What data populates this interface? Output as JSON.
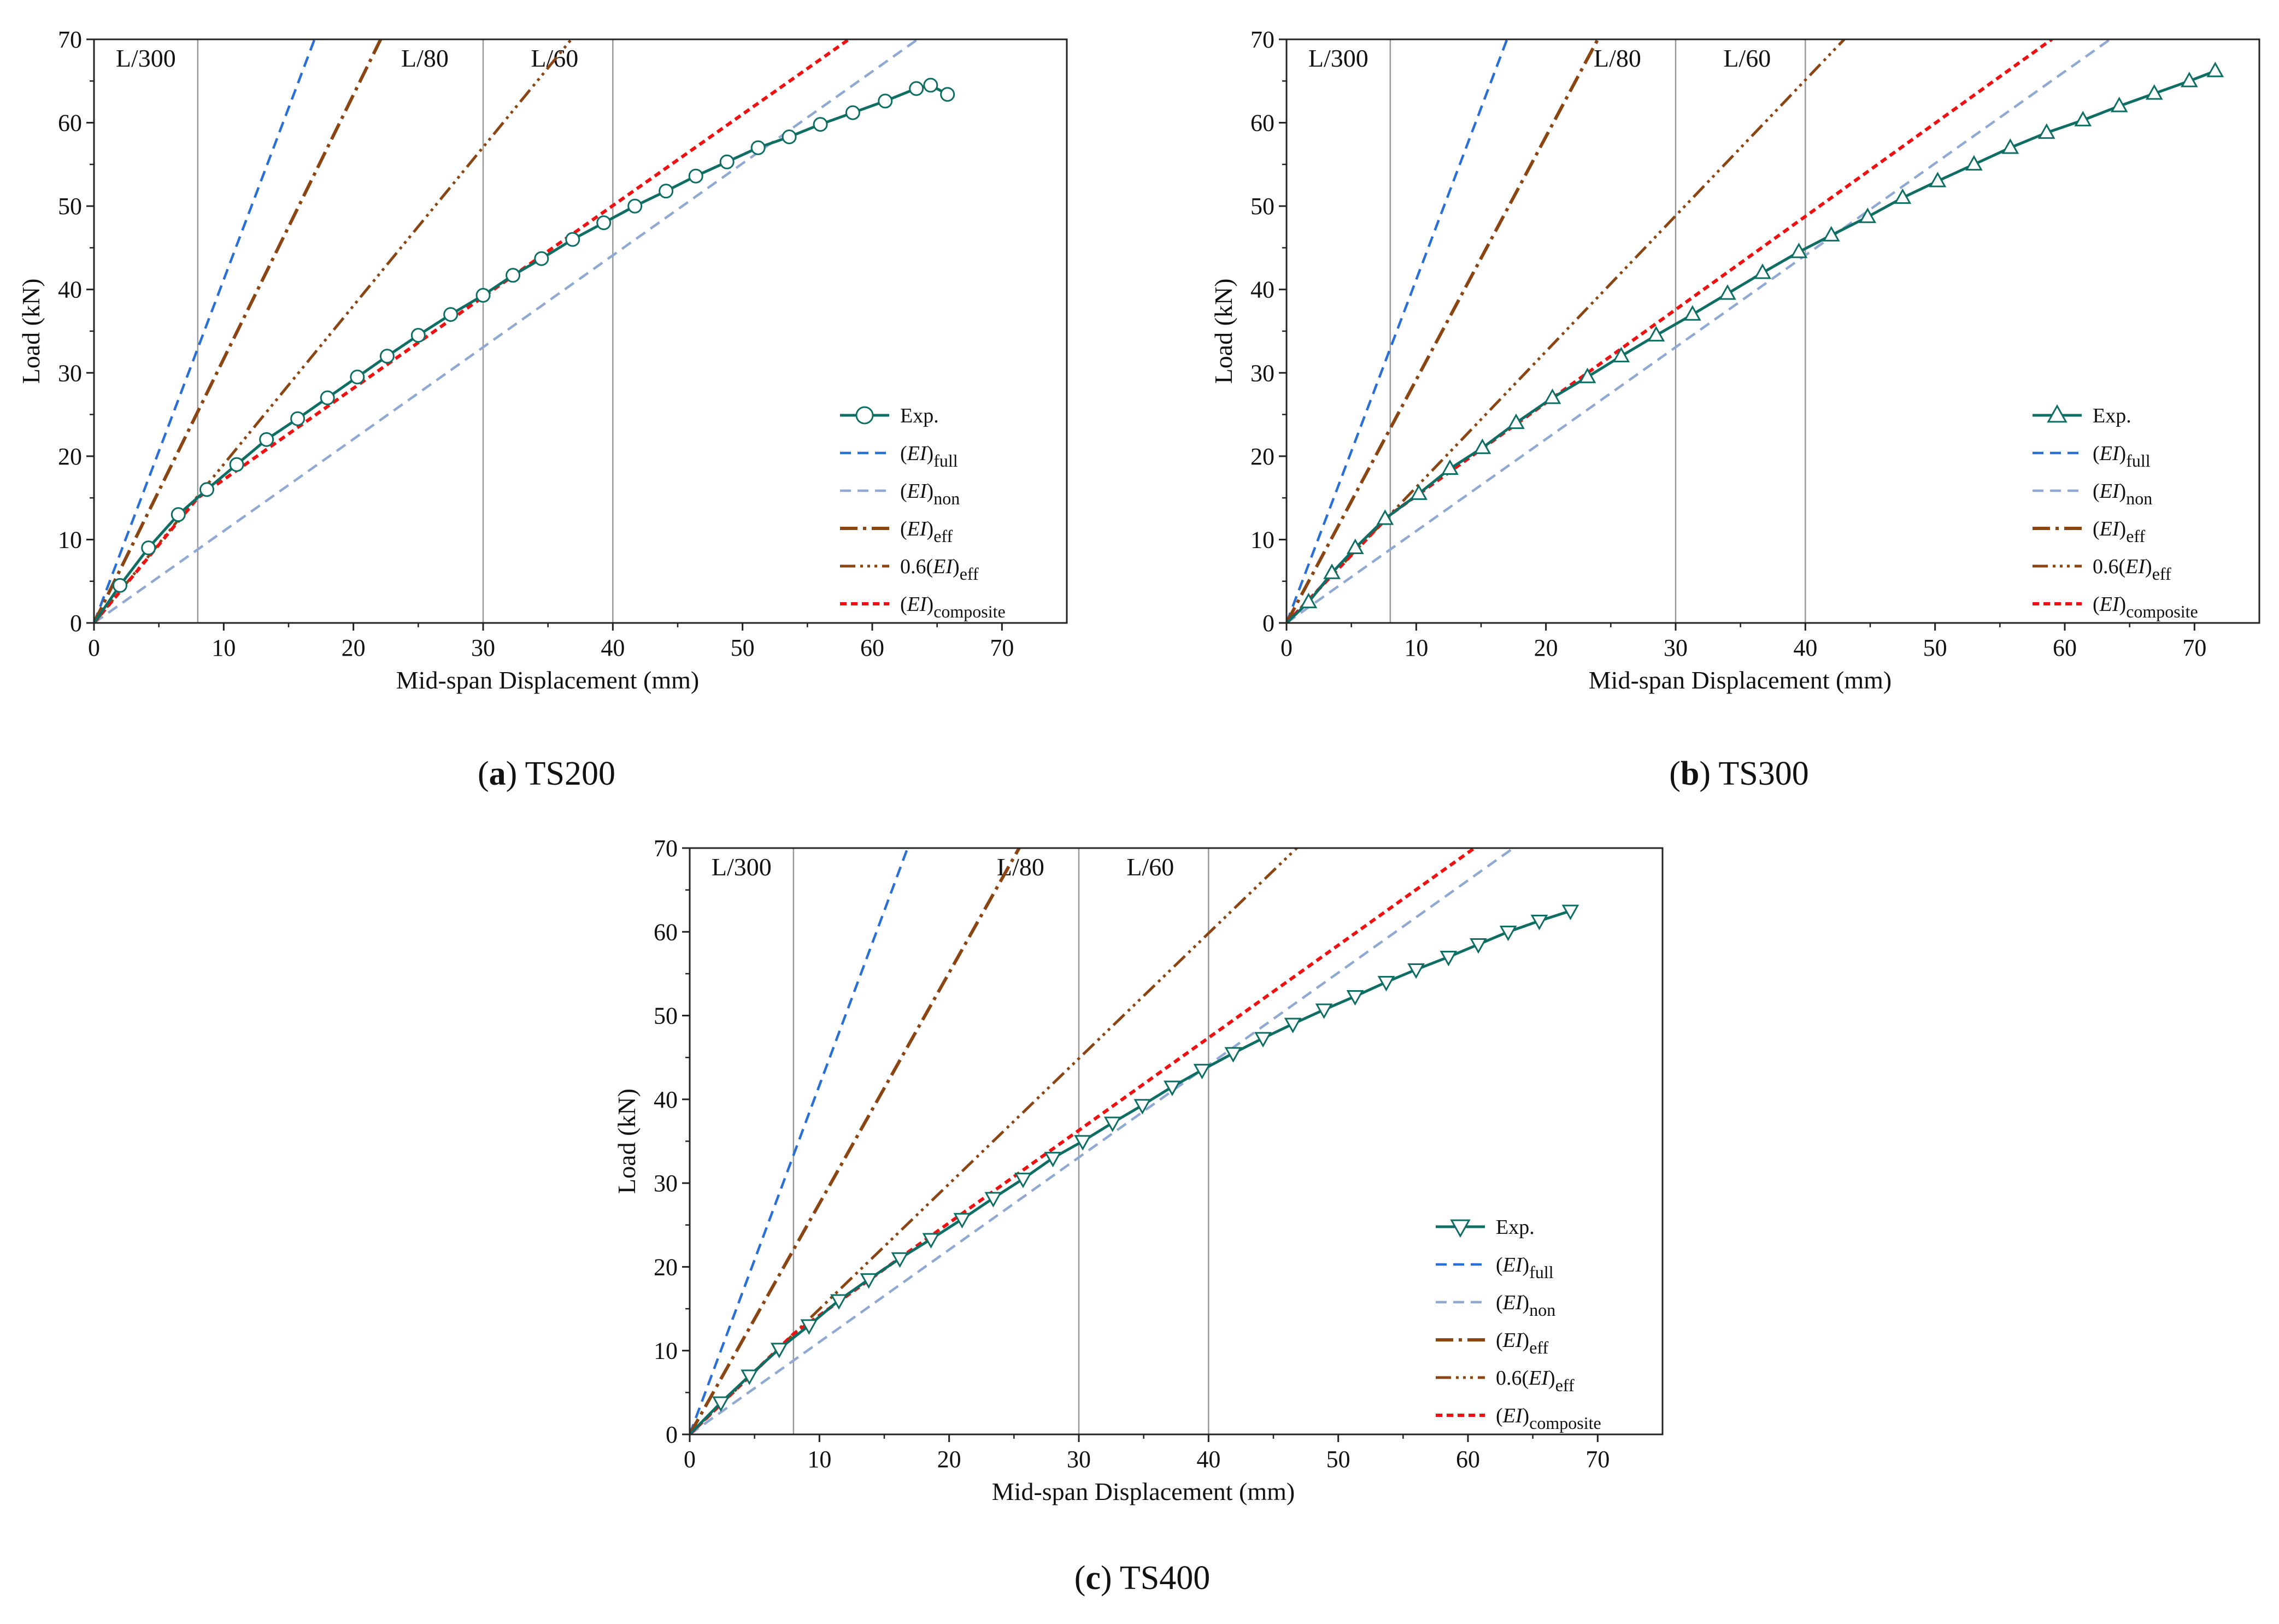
{
  "chart_data": [
    {
      "type": "line",
      "panel_letter": "a",
      "panel_caption": "TS200",
      "xlabel": "Mid-span Displacement (mm)",
      "ylabel": "Load (kN)",
      "xlim": [
        0,
        75
      ],
      "ylim": [
        0,
        70
      ],
      "xticks": [
        0,
        10,
        20,
        30,
        40,
        50,
        60,
        70
      ],
      "yticks": [
        0,
        10,
        20,
        30,
        40,
        50,
        60,
        70
      ],
      "reference_lines": [
        {
          "x": 8,
          "label": "L/300"
        },
        {
          "x": 30,
          "label": "L/80"
        },
        {
          "x": 40,
          "label": "L/60"
        }
      ],
      "series": [
        {
          "name": "Exp.",
          "marker": "circle",
          "x": [
            0,
            2,
            4.2,
            6.5,
            8.7,
            11,
            13.3,
            15.7,
            18,
            20.3,
            22.6,
            25,
            27.5,
            30,
            32.3,
            34.5,
            36.9,
            39.3,
            41.7,
            44.1,
            46.4,
            48.8,
            51.2,
            53.6,
            56,
            58.5,
            61,
            63.4,
            64.5,
            65.8
          ],
          "y": [
            0,
            4.5,
            9,
            13,
            16,
            19,
            22,
            24.5,
            27,
            29.5,
            32,
            34.5,
            37,
            39.3,
            41.7,
            43.7,
            46,
            48,
            50,
            51.8,
            53.6,
            55.3,
            57,
            58.3,
            59.8,
            61.2,
            62.6,
            64.1,
            64.5,
            63.4
          ]
        },
        {
          "name": "(EI)",
          "subscript": "full",
          "x": [
            0,
            17
          ],
          "y": [
            0,
            70
          ]
        },
        {
          "name": "(EI)",
          "subscript": "non",
          "x": [
            0,
            63.5
          ],
          "y": [
            0,
            70
          ]
        },
        {
          "name": "(EI)",
          "subscript": "eff",
          "x": [
            0,
            22.1
          ],
          "y": [
            0,
            70
          ]
        },
        {
          "name": "0.6(EI)",
          "subscript": "eff",
          "x": [
            0,
            36.8
          ],
          "y": [
            0,
            70
          ]
        },
        {
          "name": "(EI)",
          "subscript": "composite",
          "x": [
            0,
            8,
            58.2
          ],
          "y": [
            0,
            15,
            70
          ]
        }
      ]
    },
    {
      "type": "line",
      "panel_letter": "b",
      "panel_caption": "TS300",
      "xlabel": "Mid-span Displacement (mm)",
      "ylabel": "Load (kN)",
      "xlim": [
        0,
        75
      ],
      "ylim": [
        0,
        70
      ],
      "xticks": [
        0,
        10,
        20,
        30,
        40,
        50,
        60,
        70
      ],
      "yticks": [
        0,
        10,
        20,
        30,
        40,
        50,
        60,
        70
      ],
      "reference_lines": [
        {
          "x": 8,
          "label": "L/300"
        },
        {
          "x": 30,
          "label": "L/80"
        },
        {
          "x": 40,
          "label": "L/60"
        }
      ],
      "series": [
        {
          "name": "Exp.",
          "marker": "triangle-up",
          "x": [
            0,
            1.7,
            3.5,
            5.3,
            7.6,
            10.2,
            12.6,
            15.1,
            17.7,
            20.5,
            23.2,
            25.8,
            28.5,
            31.3,
            34,
            36.7,
            39.5,
            42,
            44.8,
            47.5,
            50.2,
            53,
            55.8,
            58.6,
            61.4,
            64.2,
            66.9,
            69.6,
            71.6
          ],
          "y": [
            0,
            2.5,
            6,
            9,
            12.5,
            15.5,
            18.5,
            21,
            24,
            27,
            29.5,
            32,
            34.5,
            37,
            39.5,
            42,
            44.5,
            46.5,
            48.7,
            51,
            53,
            55,
            57,
            58.8,
            60.3,
            62,
            63.5,
            65,
            66.2
          ]
        },
        {
          "name": "(EI)",
          "subscript": "full",
          "x": [
            0,
            17
          ],
          "y": [
            0,
            70
          ]
        },
        {
          "name": "(EI)",
          "subscript": "non",
          "x": [
            0,
            63.5
          ],
          "y": [
            0,
            70
          ]
        },
        {
          "name": "(EI)",
          "subscript": "eff",
          "x": [
            0,
            24
          ],
          "y": [
            0,
            70
          ]
        },
        {
          "name": "0.6(EI)",
          "subscript": "eff",
          "x": [
            0,
            43
          ],
          "y": [
            0,
            70
          ]
        },
        {
          "name": "(EI)",
          "subscript": "composite",
          "x": [
            0,
            8,
            59
          ],
          "y": [
            0,
            13,
            70
          ]
        }
      ]
    },
    {
      "type": "line",
      "panel_letter": "c",
      "panel_caption": "TS400",
      "xlabel": "Mid-span Displacement (mm)",
      "ylabel": "Load (kN)",
      "xlim": [
        0,
        75
      ],
      "ylim": [
        0,
        70
      ],
      "xticks": [
        0,
        10,
        20,
        30,
        40,
        50,
        60,
        70
      ],
      "yticks": [
        0,
        10,
        20,
        30,
        40,
        50,
        60,
        70
      ],
      "reference_lines": [
        {
          "x": 8,
          "label": "L/300"
        },
        {
          "x": 30,
          "label": "L/80"
        },
        {
          "x": 40,
          "label": "L/60"
        }
      ],
      "series": [
        {
          "name": "Exp.",
          "marker": "triangle-down",
          "x": [
            0,
            2.4,
            4.6,
            6.9,
            9.2,
            11.5,
            13.8,
            16.2,
            18.6,
            21,
            23.4,
            25.7,
            28,
            30.3,
            32.6,
            34.9,
            37.2,
            39.5,
            41.9,
            44.2,
            46.5,
            48.9,
            51.3,
            53.7,
            56,
            58.5,
            60.8,
            63.1,
            65.5,
            67.9
          ],
          "y": [
            0,
            3.8,
            7,
            10.2,
            13,
            16,
            18.5,
            21,
            23.3,
            25.7,
            28.2,
            30.5,
            33,
            35,
            37.2,
            39.3,
            41.5,
            43.5,
            45.5,
            47.3,
            49,
            50.7,
            52.3,
            54,
            55.5,
            57,
            58.5,
            60,
            61.3,
            62.5
          ]
        },
        {
          "name": "(EI)",
          "subscript": "full",
          "x": [
            0,
            16.8
          ],
          "y": [
            0,
            70
          ]
        },
        {
          "name": "(EI)",
          "subscript": "non",
          "x": [
            0,
            63.5
          ],
          "y": [
            0,
            70
          ]
        },
        {
          "name": "(EI)",
          "subscript": "eff",
          "x": [
            0,
            25.4
          ],
          "y": [
            0,
            70
          ]
        },
        {
          "name": "0.6(EI)",
          "subscript": "eff",
          "x": [
            0,
            46.8
          ],
          "y": [
            0,
            70
          ]
        },
        {
          "name": "(EI)",
          "subscript": "composite",
          "x": [
            0,
            8,
            60.5
          ],
          "y": [
            0,
            12,
            70
          ]
        }
      ]
    }
  ],
  "colors": {
    "exp": "#0e6e64",
    "marker_fill": "#ffffff",
    "full": "#2a6fd4",
    "non": "#8fa9d3",
    "eff": "#8b4513",
    "eff06": "#8b4513",
    "composite": "#ee1111",
    "reference": "#999999"
  }
}
